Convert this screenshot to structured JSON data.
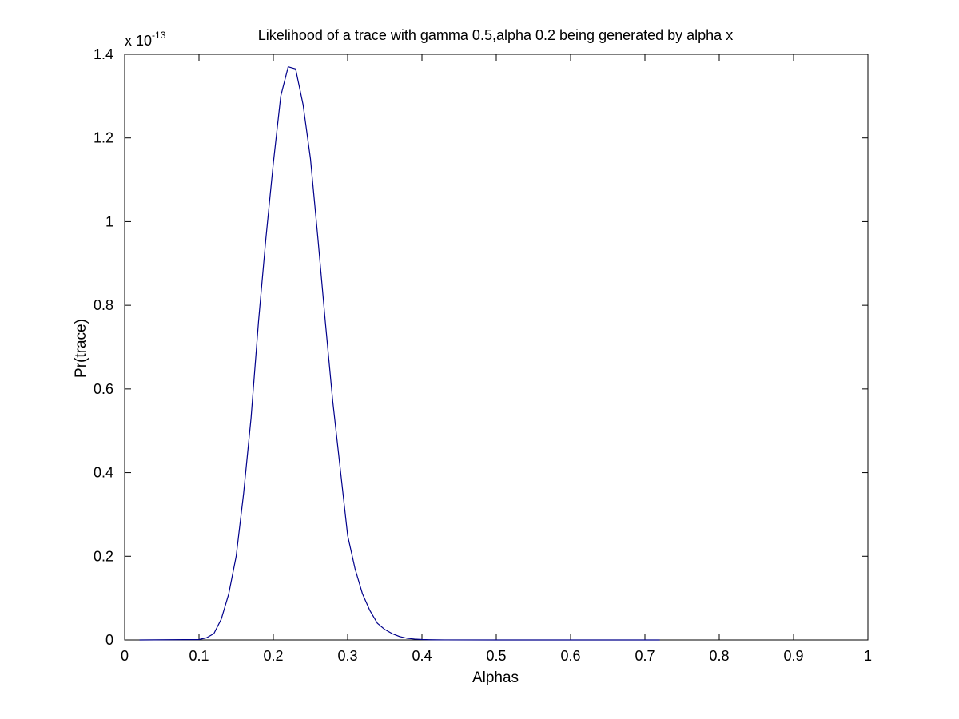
{
  "chart_data": {
    "type": "line",
    "title": "Likelihood of a trace with gamma 0.5,alpha 0.2 being generated by alpha x",
    "xlabel": "Alphas",
    "ylabel": "Pr(trace)",
    "xlim": [
      0,
      1
    ],
    "ylim": [
      0,
      1.4
    ],
    "y_exponent_base": "x 10",
    "y_exponent_power": "-13",
    "xticks": [
      0,
      0.1,
      0.2,
      0.3,
      0.4,
      0.5,
      0.6,
      0.7,
      0.8,
      0.9,
      1
    ],
    "xtick_labels": [
      "0",
      "0.1",
      "0.2",
      "0.3",
      "0.4",
      "0.5",
      "0.6",
      "0.7",
      "0.8",
      "0.9",
      "1"
    ],
    "yticks": [
      0,
      0.2,
      0.4,
      0.6,
      0.8,
      1,
      1.2,
      1.4
    ],
    "ytick_labels": [
      "0",
      "0.2",
      "0.4",
      "0.6",
      "0.8",
      "1",
      "1.2",
      "1.4"
    ],
    "grid": false,
    "line_color": "#00008b",
    "series": [
      {
        "x": [
          0.02,
          0.1,
          0.11,
          0.12,
          0.13,
          0.14,
          0.15,
          0.16,
          0.17,
          0.18,
          0.19,
          0.2,
          0.21,
          0.22,
          0.23,
          0.24,
          0.25,
          0.26,
          0.27,
          0.28,
          0.29,
          0.3,
          0.31,
          0.32,
          0.33,
          0.34,
          0.35,
          0.36,
          0.37,
          0.38,
          0.39,
          0.4,
          0.41,
          0.42,
          0.43,
          0.5,
          0.6,
          0.72
        ],
        "y": [
          0,
          0.001,
          0.005,
          0.015,
          0.05,
          0.11,
          0.2,
          0.35,
          0.53,
          0.76,
          0.96,
          1.14,
          1.3,
          1.37,
          1.365,
          1.28,
          1.15,
          0.96,
          0.76,
          0.57,
          0.41,
          0.25,
          0.17,
          0.11,
          0.07,
          0.04,
          0.025,
          0.015,
          0.008,
          0.004,
          0.002,
          0.001,
          0.0005,
          0.0002,
          0.0001,
          0,
          0,
          0
        ]
      }
    ]
  }
}
